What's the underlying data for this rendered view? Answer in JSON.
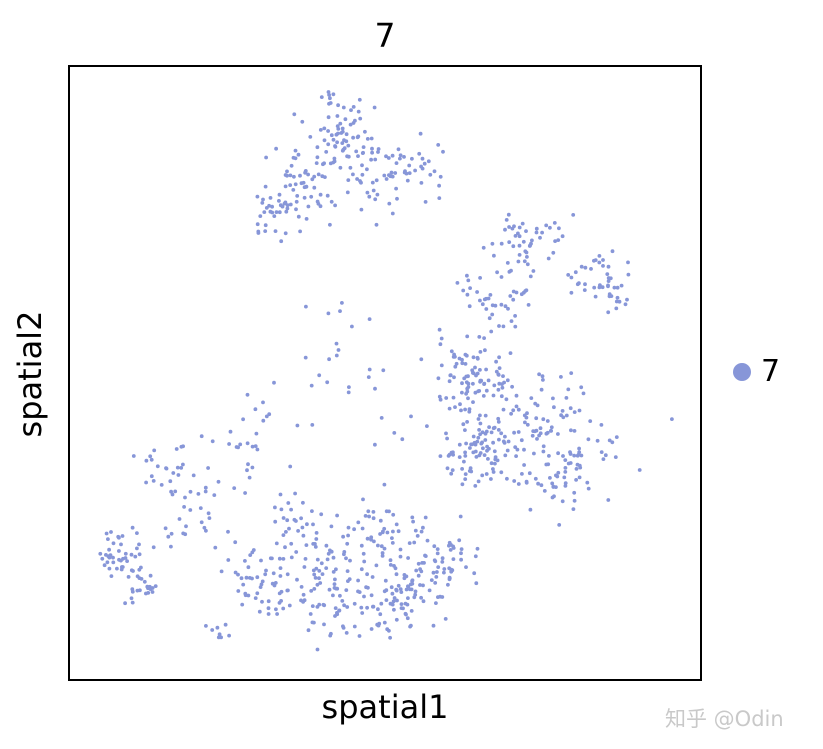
{
  "chart_data": {
    "type": "scatter",
    "title": "7",
    "xlabel": "spatial1",
    "ylabel": "spatial2",
    "xlim": [
      0,
      100
    ],
    "ylim": [
      0,
      100
    ],
    "ticks": false,
    "grid": false,
    "legend": {
      "placement": "right",
      "entries": [
        {
          "label": "7",
          "color": "#8796d8"
        }
      ]
    },
    "point_color": "#8796d8",
    "point_clusters_note_fields": [
      "x",
      "y",
      "count",
      "spread"
    ],
    "point_clusters": [
      [
        42.9,
        87.9,
        70,
        4.5
      ],
      [
        36.6,
        79.8,
        60,
        4
      ],
      [
        49.2,
        83.1,
        45,
        4.5
      ],
      [
        55.5,
        83.9,
        22,
        3
      ],
      [
        31.8,
        75.7,
        22,
        2.5
      ],
      [
        72.9,
        71.7,
        45,
        4
      ],
      [
        84.0,
        65.1,
        45,
        3.5
      ],
      [
        68.2,
        61.9,
        45,
        4
      ],
      [
        63.4,
        48.9,
        90,
        4.5
      ],
      [
        65.0,
        37.5,
        90,
        4.5
      ],
      [
        74.5,
        42.3,
        65,
        5
      ],
      [
        77.7,
        32.6,
        45,
        4.5
      ],
      [
        82.4,
        37.5,
        22,
        3
      ],
      [
        41.3,
        14.7,
        90,
        5.5
      ],
      [
        52.4,
        13.0,
        65,
        4.5
      ],
      [
        30.2,
        16.3,
        45,
        4
      ],
      [
        58.7,
        19.5,
        65,
        4.5
      ],
      [
        36.6,
        22.8,
        45,
        4.5
      ],
      [
        49.2,
        24.4,
        45,
        4.5
      ],
      [
        44.5,
        48.9,
        28,
        8
      ],
      [
        28.6,
        37.5,
        28,
        6
      ],
      [
        20.7,
        29.3,
        28,
        4.5
      ],
      [
        14.4,
        35.8,
        22,
        3
      ],
      [
        8.1,
        21.2,
        45,
        3
      ],
      [
        12.0,
        14.7,
        22,
        2
      ],
      [
        23.9,
        8.1,
        8,
        1.3
      ],
      [
        95.4,
        42.5,
        1,
        0
      ],
      [
        90.3,
        34.2,
        1,
        0
      ],
      [
        41.3,
        95.0,
        6,
        1.3
      ]
    ]
  },
  "watermark": "知乎 @Odin"
}
